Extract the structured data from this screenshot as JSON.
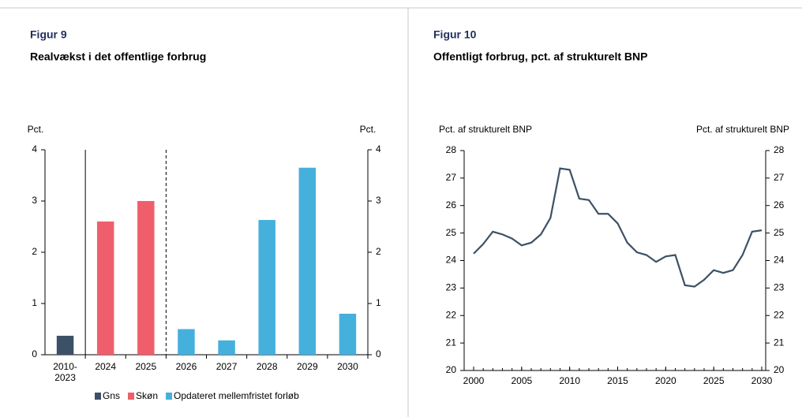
{
  "chart_data": [
    {
      "type": "bar",
      "heading": "Figur 9",
      "title": "Realvækst i det offentlige forbrug",
      "ylabel": "Pct.",
      "y2label": "Pct.",
      "categories": [
        "2010-2023",
        "2024",
        "2025",
        "2026",
        "2027",
        "2028",
        "2029",
        "2030"
      ],
      "series": [
        {
          "name": "Gns",
          "color": "#3d5166",
          "values": [
            0.37,
            null,
            null,
            null,
            null,
            null,
            null,
            null
          ]
        },
        {
          "name": "Skøn",
          "color": "#ef5f6b",
          "values": [
            null,
            2.6,
            3.0,
            null,
            null,
            null,
            null,
            null
          ]
        },
        {
          "name": "Opdateret mellemfristet forløb",
          "color": "#45b0dc",
          "values": [
            null,
            null,
            null,
            0.5,
            0.28,
            2.63,
            3.65,
            0.8
          ]
        }
      ],
      "ylim": [
        0,
        4
      ],
      "yticks": [
        0,
        1,
        2,
        3,
        4
      ],
      "y2lim": [
        0,
        4
      ],
      "y2ticks": [
        0,
        1,
        2,
        3,
        4
      ],
      "grid": false,
      "legend": "bottom"
    },
    {
      "type": "line",
      "heading": "Figur 10",
      "title": "Offentligt forbrug, pct. af strukturelt BNP",
      "ylabel": "Pct. af strukturelt BNP",
      "y2label": "Pct. af strukturelt BNP",
      "x": [
        2000,
        2001,
        2002,
        2003,
        2004,
        2005,
        2006,
        2007,
        2008,
        2009,
        2010,
        2011,
        2012,
        2013,
        2014,
        2015,
        2016,
        2017,
        2018,
        2019,
        2020,
        2021,
        2022,
        2023,
        2024,
        2025,
        2026,
        2027,
        2028,
        2029,
        2030
      ],
      "series": [
        {
          "color": "#3d5166",
          "values": [
            24.25,
            24.6,
            25.05,
            24.95,
            24.8,
            24.55,
            24.65,
            24.95,
            25.55,
            27.35,
            27.3,
            26.25,
            26.2,
            25.7,
            25.7,
            25.35,
            24.65,
            24.3,
            24.2,
            23.95,
            24.15,
            24.2,
            23.1,
            23.05,
            23.3,
            23.65,
            23.55,
            23.65,
            24.2,
            25.05,
            25.1
          ]
        }
      ],
      "xlim": [
        2000,
        2030
      ],
      "xticks": [
        2000,
        2005,
        2010,
        2015,
        2020,
        2025,
        2030
      ],
      "ylim": [
        20,
        28
      ],
      "yticks": [
        20,
        21,
        22,
        23,
        24,
        25,
        26,
        27,
        28
      ],
      "y2lim": [
        20,
        28
      ],
      "y2ticks": [
        20,
        21,
        22,
        23,
        24,
        25,
        26,
        27,
        28
      ],
      "grid": false
    }
  ]
}
